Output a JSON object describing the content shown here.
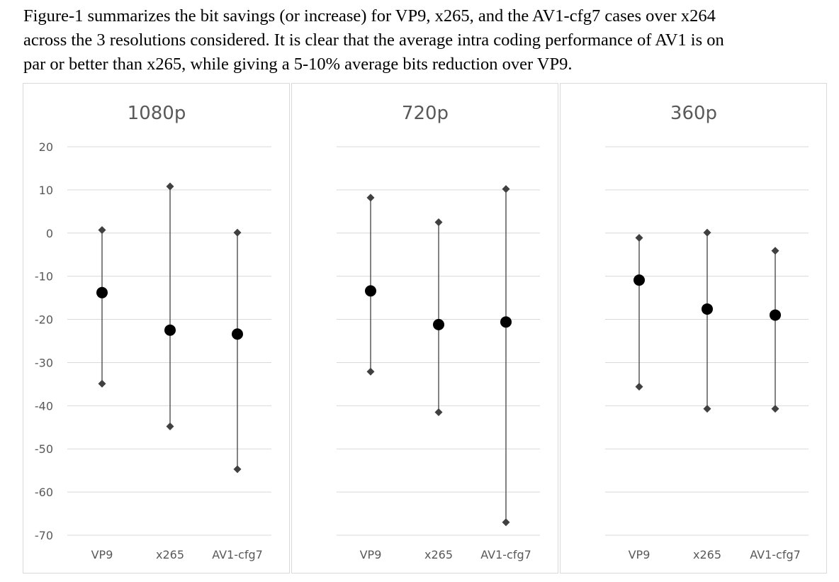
{
  "caption": {
    "line1": "Figure-1 summarizes the bit savings (or increase) for VP9, x265, and the AV1-cfg7 cases over x264",
    "line2": "across the 3 resolutions considered. It is clear that the average intra coding performance of AV1 is on",
    "line3": "par or better than x265, while giving a 5-10% average bits reduction over VP9."
  },
  "chart_data": [
    {
      "type": "scatter",
      "title": "1080p",
      "categories": [
        "VP9",
        "x265",
        "AV1-cfg7"
      ],
      "ylim": [
        -70,
        20
      ],
      "yticks": [
        20,
        10,
        0,
        -10,
        -20,
        -30,
        -40,
        -50,
        -60,
        -70
      ],
      "grid": true,
      "max": [
        0.7,
        10.8,
        0.1
      ],
      "avg": [
        -13.8,
        -22.5,
        -23.4
      ],
      "min": [
        -34.9,
        -44.8,
        -54.7
      ]
    },
    {
      "type": "scatter",
      "title": "720p",
      "categories": [
        "VP9",
        "x265",
        "AV1-cfg7"
      ],
      "ylim": [
        -70,
        20
      ],
      "grid": true,
      "max": [
        8.2,
        2.5,
        10.2
      ],
      "avg": [
        -13.4,
        -21.2,
        -20.6
      ],
      "min": [
        -32.1,
        -41.5,
        -67.0
      ]
    },
    {
      "type": "scatter",
      "title": "360p",
      "categories": [
        "VP9",
        "x265",
        "AV1-cfg7"
      ],
      "ylim": [
        -70,
        20
      ],
      "grid": true,
      "max": [
        -1.1,
        0.1,
        -4.1
      ],
      "avg": [
        -10.9,
        -17.6,
        -19.0
      ],
      "min": [
        -35.6,
        -40.7,
        -40.7
      ]
    }
  ],
  "colors": {
    "marker_minmax": "#404040",
    "marker_avg": "#000000",
    "whisker": "#404040",
    "gridline": "#d9d9d9",
    "text": "#595959"
  }
}
